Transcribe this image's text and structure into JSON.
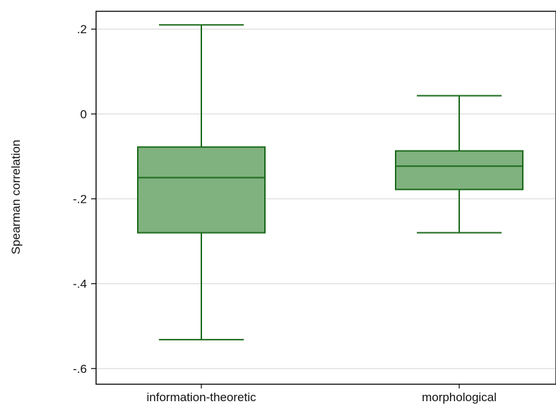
{
  "chart_data": {
    "type": "box",
    "ylabel": "Spearman correlation",
    "categories": [
      "information-theoretic",
      "morphological"
    ],
    "boxes": [
      {
        "category": "information-theoretic",
        "whisker_low": -0.532,
        "q1": -0.28,
        "median": -0.15,
        "q3": -0.078,
        "whisker_high": 0.21
      },
      {
        "category": "morphological",
        "whisker_low": -0.28,
        "q1": -0.178,
        "median": -0.123,
        "q3": -0.087,
        "whisker_high": 0.043
      }
    ],
    "yticks": [
      {
        "value": 0.2,
        "label": ".2"
      },
      {
        "value": 0.0,
        "label": "0"
      },
      {
        "value": -0.2,
        "label": "-.2"
      },
      {
        "value": -0.4,
        "label": "-.4"
      },
      {
        "value": -0.6,
        "label": "-.6"
      }
    ],
    "ylim": [
      -0.637,
      0.242
    ],
    "grid": true,
    "colors": {
      "box_fill": "#80b27f",
      "box_stroke": "#1c6b1c",
      "grid": "#dddddd",
      "axis": "#000000"
    }
  }
}
